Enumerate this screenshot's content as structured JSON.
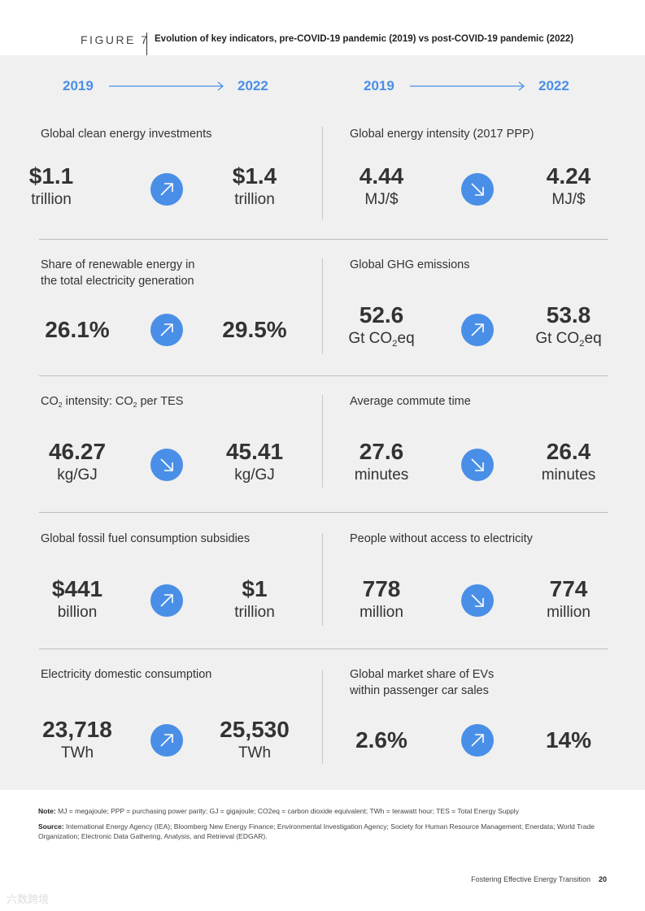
{
  "figure": {
    "label": "FIGURE 7",
    "title": "Evolution of key indicators, pre-COVID-19 pandemic (2019) vs post-COVID-19 pandemic (2022)"
  },
  "years": {
    "from": "2019",
    "to": "2022"
  },
  "colors": {
    "accent": "#4a8fe7",
    "panel_bg": "#f0f0f0",
    "text": "#333333"
  },
  "indicators": [
    {
      "label": "Global clean energy investments",
      "v2019": "$1.1",
      "u2019": "trillion",
      "v2022": "$1.4",
      "u2022": "trillion",
      "trend": "up-arrow-icon"
    },
    {
      "label": "Global energy intensity (2017 PPP)",
      "v2019": "4.44",
      "u2019": "MJ/$",
      "v2022": "4.24",
      "u2022": "MJ/$",
      "trend": "down-arrow-icon"
    },
    {
      "label": "Share of renewable energy in\nthe total electricity generation",
      "v2019": "26.1%",
      "u2019": "",
      "v2022": "29.5%",
      "u2022": "",
      "trend": "up-arrow-icon"
    },
    {
      "label": "Global GHG emissions",
      "v2019": "52.6",
      "u2019": "Gt CO2eq",
      "v2022": "53.8",
      "u2022": "Gt CO2eq",
      "trend": "up-arrow-icon"
    },
    {
      "label": "CO2 intensity: CO2 per TES",
      "v2019": "46.27",
      "u2019": "kg/GJ",
      "v2022": "45.41",
      "u2022": "kg/GJ",
      "trend": "down-arrow-icon"
    },
    {
      "label": "Average commute time",
      "v2019": "27.6",
      "u2019": "minutes",
      "v2022": "26.4",
      "u2022": "minutes",
      "trend": "down-arrow-icon"
    },
    {
      "label": "Global fossil fuel consumption subsidies",
      "v2019": "$441",
      "u2019": "billion",
      "v2022": "$1",
      "u2022": "trillion",
      "trend": "up-arrow-icon"
    },
    {
      "label": "People without access to electricity",
      "v2019": "778",
      "u2019": "million",
      "v2022": "774",
      "u2022": "million",
      "trend": "down-arrow-icon"
    },
    {
      "label": "Electricity domestic consumption",
      "v2019": "23,718",
      "u2019": "TWh",
      "v2022": "25,530",
      "u2022": "TWh",
      "trend": "up-arrow-icon"
    },
    {
      "label": "Global market share of EVs\nwithin passenger car sales",
      "v2019": "2.6%",
      "u2019": "",
      "v2022": "14%",
      "u2022": "",
      "trend": "up-arrow-icon"
    }
  ],
  "notes": {
    "note_label": "Note:",
    "note_text": "MJ = megajoule; PPP = purchasing power parity; GJ = gigajoule; CO2eq = carbon dioxide equivalent; TWh = terawatt hour; TES = Total Energy Supply",
    "source_label": "Source:",
    "source_text": "International Energy Agency (IEA); Bloomberg New Energy Finance; Environmental Investigation Agency; Society for Human Resource Management; Enerdata; World Trade Organization; Electronic Data Gathering, Analysis, and Retrieval (EDGAR)."
  },
  "footer": {
    "text": "Fostering Effective Energy Transition",
    "page": "20"
  },
  "watermark": "六数跨境"
}
